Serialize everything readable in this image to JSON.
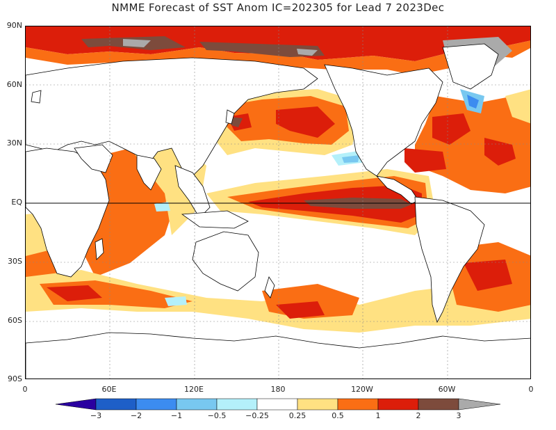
{
  "title": "NMME Forecast of SST Anom IC=202305 for Lead 7 2023Dec",
  "y_axis": {
    "labels": [
      "90N",
      "60N",
      "30N",
      "EQ",
      "30S",
      "60S",
      "90S"
    ]
  },
  "x_axis": {
    "labels": [
      "0",
      "60E",
      "120E",
      "180",
      "120W",
      "60W",
      "0"
    ]
  },
  "colorbar": {
    "labels": [
      "−3",
      "−2",
      "−1",
      "−0.5",
      "−0.25",
      "0.25",
      "0.5",
      "1",
      "2",
      "3"
    ],
    "colors": [
      "#2a00a0",
      "#1e5fc8",
      "#3c8cf0",
      "#78c8f0",
      "#b4f0fa",
      "#ffffff",
      "#ffe182",
      "#fa6e14",
      "#dc1e0a",
      "#7d4b3c",
      "#aaaaaa"
    ]
  },
  "colors": {
    "pos_025": "#ffe182",
    "pos_05": "#fa6e14",
    "pos_1": "#dc1e0a",
    "pos_2": "#7d4b3c",
    "pos_3": "#aaaaaa",
    "neg_025": "#b4f0fa",
    "neg_05": "#78c8f0",
    "neg_1": "#3c8cf0"
  }
}
